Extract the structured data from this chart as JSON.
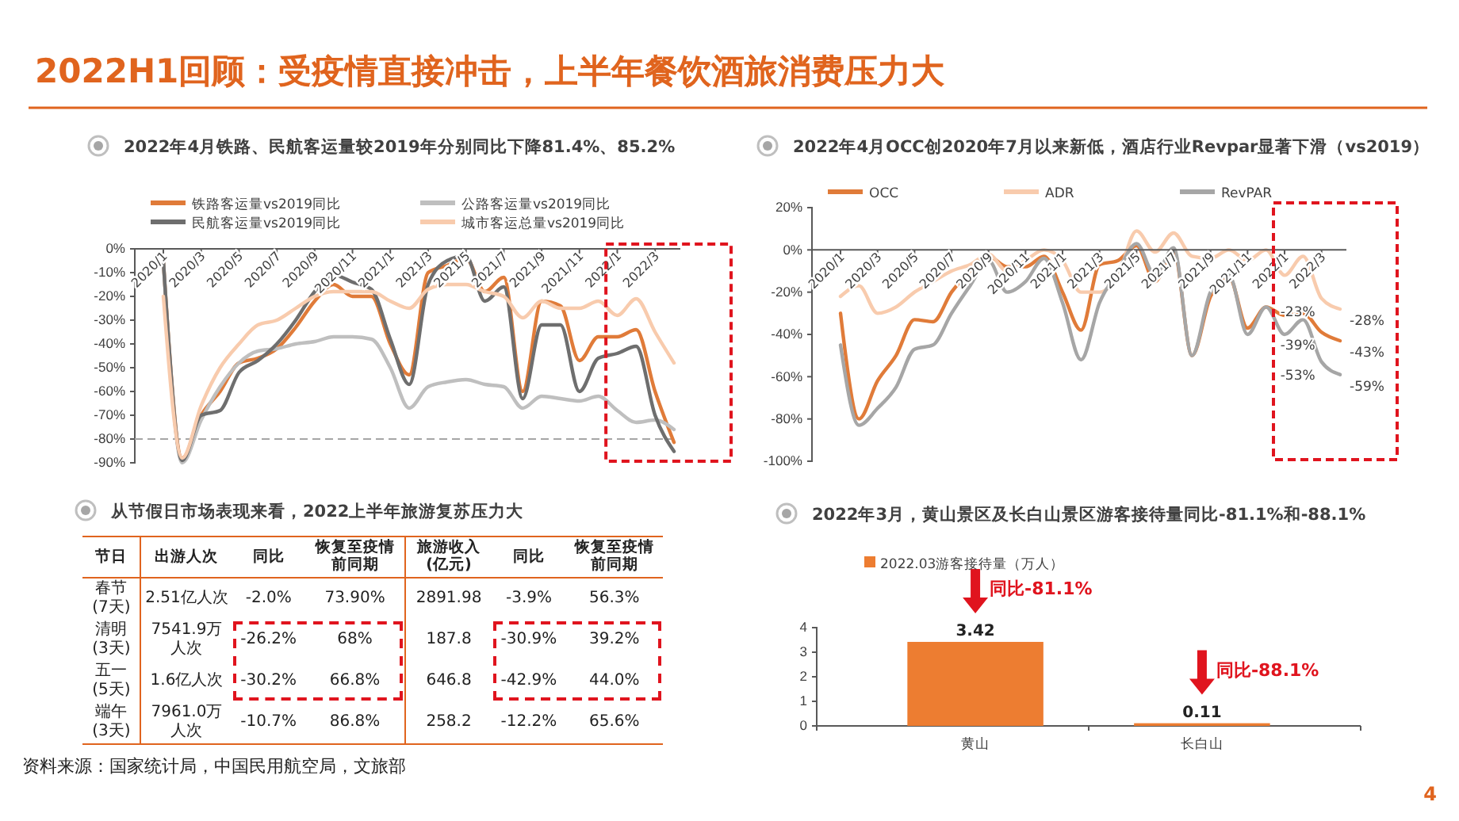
{
  "chart_data": [
    {
      "type": "other",
      "title": "2022H1回顾：受疫情直接冲击，上半年餐饮酒旅消费压力大",
      "annotations": [
        "资料来源：国家统计局，中国民用航空局，文旅部",
        "4"
      ]
    },
    {
      "type": "line",
      "title": "2022年4月铁路、民航客运量较2019年分别同比下降81.4%、85.2%",
      "categories": [
        "2020/1",
        null,
        "2020/3",
        null,
        "2020/5",
        null,
        "2020/7",
        null,
        "2020/9",
        null,
        "2020/11",
        null,
        "2021/1",
        null,
        "2021/3",
        null,
        "2021/5",
        null,
        "2021/7",
        null,
        "2021/9",
        null,
        "2021/11",
        null,
        "2022/1",
        null,
        "2022/3",
        null
      ],
      "ylim": [
        -90,
        0
      ],
      "yticks": [
        {
          "value": 0,
          "label": "0%"
        },
        {
          "value": -10,
          "label": "-10%"
        },
        {
          "value": -20,
          "label": "-20%"
        },
        {
          "value": -30,
          "label": "-30%"
        },
        {
          "value": -40,
          "label": "-40%"
        },
        {
          "value": -50,
          "label": "-50%"
        },
        {
          "value": -60,
          "label": "-60%"
        },
        {
          "value": -70,
          "label": "-70%"
        },
        {
          "value": -80,
          "label": "-80%"
        },
        {
          "value": -90,
          "label": "-90%"
        }
      ],
      "legend": "top",
      "series": [
        {
          "name": "铁路客运量vs2019同比",
          "color": "#E07B39",
          "values": [
            -5,
            -88,
            -70,
            -60,
            -48,
            -46,
            -42,
            -33,
            -22,
            -15,
            -20,
            -20,
            -40,
            -53,
            -10,
            -7,
            -4,
            -18,
            -12,
            -60,
            -22,
            -24,
            -47,
            -37,
            -37,
            -34,
            -60,
            -81.4
          ]
        },
        {
          "name": "公路客运量vs2019同比",
          "color": "#BFBFBF",
          "values": [
            -5,
            -90,
            -72,
            -58,
            -48,
            -43,
            -42,
            -40,
            -39,
            -37,
            -37,
            -38,
            -50,
            -67,
            -58,
            -56,
            -55,
            -57,
            -58,
            -67,
            -62,
            -63,
            -64,
            -62,
            -68,
            -73,
            -72,
            -76
          ]
        },
        {
          "name": "民航客运量vs2019同比",
          "color": "#6E6E6E",
          "values": [
            -5,
            -89,
            -70,
            -68,
            -52,
            -47,
            -40,
            -30,
            -18,
            -11,
            -14,
            -17,
            -38,
            -57,
            -15,
            -5,
            -3,
            -22,
            -16,
            -63,
            -32,
            -32,
            -60,
            -46,
            -44,
            -41,
            -70,
            -85.2
          ]
        },
        {
          "name": "城市客运总量vs2019同比",
          "color": "#F8CBAD",
          "values": [
            -20,
            -88,
            -66,
            -50,
            -40,
            -32,
            -30,
            -25,
            -20,
            -18,
            -18,
            -18,
            -22,
            -25,
            -17,
            -15,
            -15,
            -18,
            -20,
            -29,
            -22,
            -25,
            -25,
            -22,
            -28,
            -21,
            -35,
            -48
          ]
        }
      ],
      "ref_lines": [
        {
          "axis": "y",
          "value": -80,
          "color": "#A6A6A6",
          "line_style": "dashed"
        }
      ]
    },
    {
      "type": "line",
      "title": "2022年4月OCC创2020年7月以来新低，酒店行业Revpar显著下滑（vs2019）",
      "categories": [
        "2020/1",
        null,
        "2020/3",
        null,
        "2020/5",
        null,
        "2020/7",
        null,
        "2020/9",
        null,
        "2020/11",
        null,
        "2021/1",
        null,
        "2021/3",
        null,
        "2021/5",
        null,
        "2021/7",
        null,
        "2021/9",
        null,
        "2021/11",
        null,
        "2022/1",
        null,
        "2022/3",
        null
      ],
      "ylim": [
        -100,
        20
      ],
      "yticks": [
        {
          "value": -100,
          "label": "-100%"
        },
        {
          "value": -80,
          "label": "-80%"
        },
        {
          "value": -60,
          "label": "-60%"
        },
        {
          "value": -40,
          "label": "-40%"
        },
        {
          "value": -20,
          "label": "-20%"
        },
        {
          "value": 0,
          "label": "0%"
        },
        {
          "value": 20,
          "label": "20%"
        }
      ],
      "legend": "top",
      "series": [
        {
          "name": "OCC",
          "color": "#E07B39",
          "values": [
            -30,
            -80,
            -62,
            -50,
            -33,
            -34,
            -20,
            -10,
            -3,
            -8,
            -8,
            -3,
            -20,
            -38,
            -7,
            -5,
            2,
            -15,
            0,
            -50,
            -22,
            -13,
            -37,
            -27,
            -31,
            -30,
            -39,
            -43
          ],
          "value_labels": [
            null,
            null,
            null,
            null,
            null,
            null,
            null,
            null,
            null,
            null,
            null,
            null,
            null,
            null,
            null,
            null,
            null,
            null,
            null,
            null,
            null,
            null,
            null,
            null,
            null,
            null,
            "-39%",
            "-43%"
          ]
        },
        {
          "name": "ADR",
          "color": "#F8CBAD",
          "values": [
            -22,
            -17,
            -30,
            -27,
            -20,
            -15,
            -10,
            -7,
            -2,
            -10,
            -5,
            0,
            -5,
            -20,
            -20,
            -12,
            9,
            -1,
            8,
            -3,
            -4,
            0,
            -5,
            0,
            -12,
            -3,
            -23,
            -28
          ],
          "value_labels": [
            null,
            null,
            null,
            null,
            null,
            null,
            null,
            null,
            null,
            null,
            null,
            null,
            null,
            null,
            null,
            null,
            null,
            null,
            null,
            null,
            null,
            null,
            null,
            null,
            null,
            null,
            "-23%",
            "-28%"
          ]
        },
        {
          "name": "RevPAR",
          "color": "#A6A6A6",
          "values": [
            -45,
            -83,
            -75,
            -65,
            -47,
            -45,
            -30,
            -17,
            -5,
            -20,
            -15,
            -4,
            -25,
            -52,
            -25,
            -10,
            3,
            -12,
            1,
            -50,
            -20,
            -12,
            -40,
            -27,
            -40,
            -33,
            -53,
            -59
          ],
          "value_labels": [
            null,
            null,
            null,
            null,
            null,
            null,
            null,
            null,
            null,
            null,
            null,
            null,
            null,
            null,
            null,
            null,
            null,
            null,
            null,
            null,
            null,
            null,
            null,
            null,
            null,
            null,
            "-53%",
            "-59%"
          ]
        }
      ]
    },
    {
      "type": "other",
      "title": "从节假日市场表现来看，2022上半年旅游复苏压力大",
      "categories": [
        "节日",
        "出游人次",
        "同比",
        "恢复至疫情前同期",
        "旅游收入(亿元)",
        "同比",
        "恢复至疫情前同期"
      ],
      "annotations": [
        "春节(7天)",
        "2.51亿人次",
        "-2.0%",
        "73.90%",
        "2891.98",
        "-3.9%",
        "56.3%",
        "清明(3天)",
        "7541.9万人次",
        "-26.2%",
        "68%",
        "187.8",
        "-30.9%",
        "39.2%",
        "五一(5天)",
        "1.6亿人次",
        "-30.2%",
        "66.8%",
        "646.8",
        "-42.9%",
        "44.0%",
        "端午(3天)",
        "7961.0万人次",
        "-10.7%",
        "86.8%",
        "258.2",
        "-12.2%",
        "65.6%"
      ]
    },
    {
      "type": "bar",
      "title": "2022年3月，黄山景区及长白山景区游客接待量同比-81.1%和-88.1%",
      "categories": [
        "黄山",
        "长白山"
      ],
      "series": [
        {
          "name": "2022.03游客接待量（万人）",
          "color": "#ED7D31",
          "values": [
            3.42,
            0.11
          ]
        }
      ],
      "ylim": [
        0,
        4
      ],
      "yticks": [
        0,
        1,
        2,
        3,
        4
      ],
      "data_labels": true,
      "legend": "top",
      "annotations": [
        "同比-81.1%",
        "同比-88.1%"
      ]
    }
  ]
}
